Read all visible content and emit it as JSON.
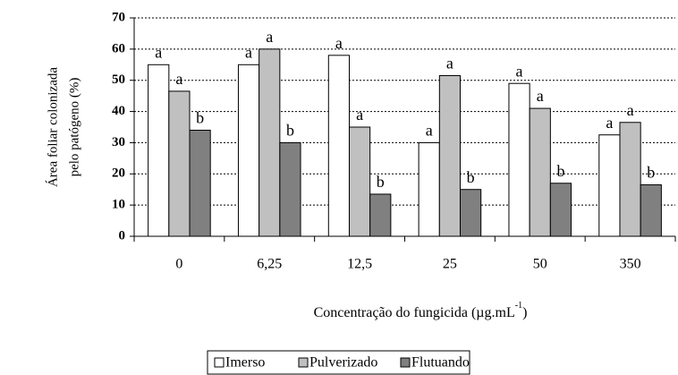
{
  "chart_data": {
    "type": "bar",
    "y_label": [
      "Área foliar colonizada",
      "pelo patógeno (%)"
    ],
    "x_label": {
      "text": "Concentração do fungicida (µg.mL",
      "superscript": "-1",
      "suffix": ")"
    },
    "categories": [
      "0",
      "6,25",
      "12,5",
      "25",
      "50",
      "350"
    ],
    "series": [
      {
        "name": "Imerso",
        "color": "#ffffff",
        "values": [
          55,
          55,
          58,
          30,
          49,
          32.5
        ],
        "annotations": [
          "a",
          "a",
          "a",
          "a",
          "a",
          "a"
        ]
      },
      {
        "name": "Pulverizado",
        "color": "#c0c0c0",
        "values": [
          46.5,
          60,
          35,
          51.5,
          41,
          36.5
        ],
        "annotations": [
          "a",
          "a",
          "a",
          "a",
          "a",
          "a"
        ]
      },
      {
        "name": "Flutuando",
        "color": "#808080",
        "values": [
          34,
          30,
          13.5,
          15,
          17,
          16.5
        ],
        "annotations": [
          "b",
          "b",
          "b",
          "b",
          "b",
          "b"
        ]
      }
    ],
    "ylim": [
      0,
      70
    ],
    "yticks": [
      0,
      10,
      20,
      30,
      40,
      50,
      60,
      70
    ],
    "grid": true,
    "legend": "bottom"
  }
}
